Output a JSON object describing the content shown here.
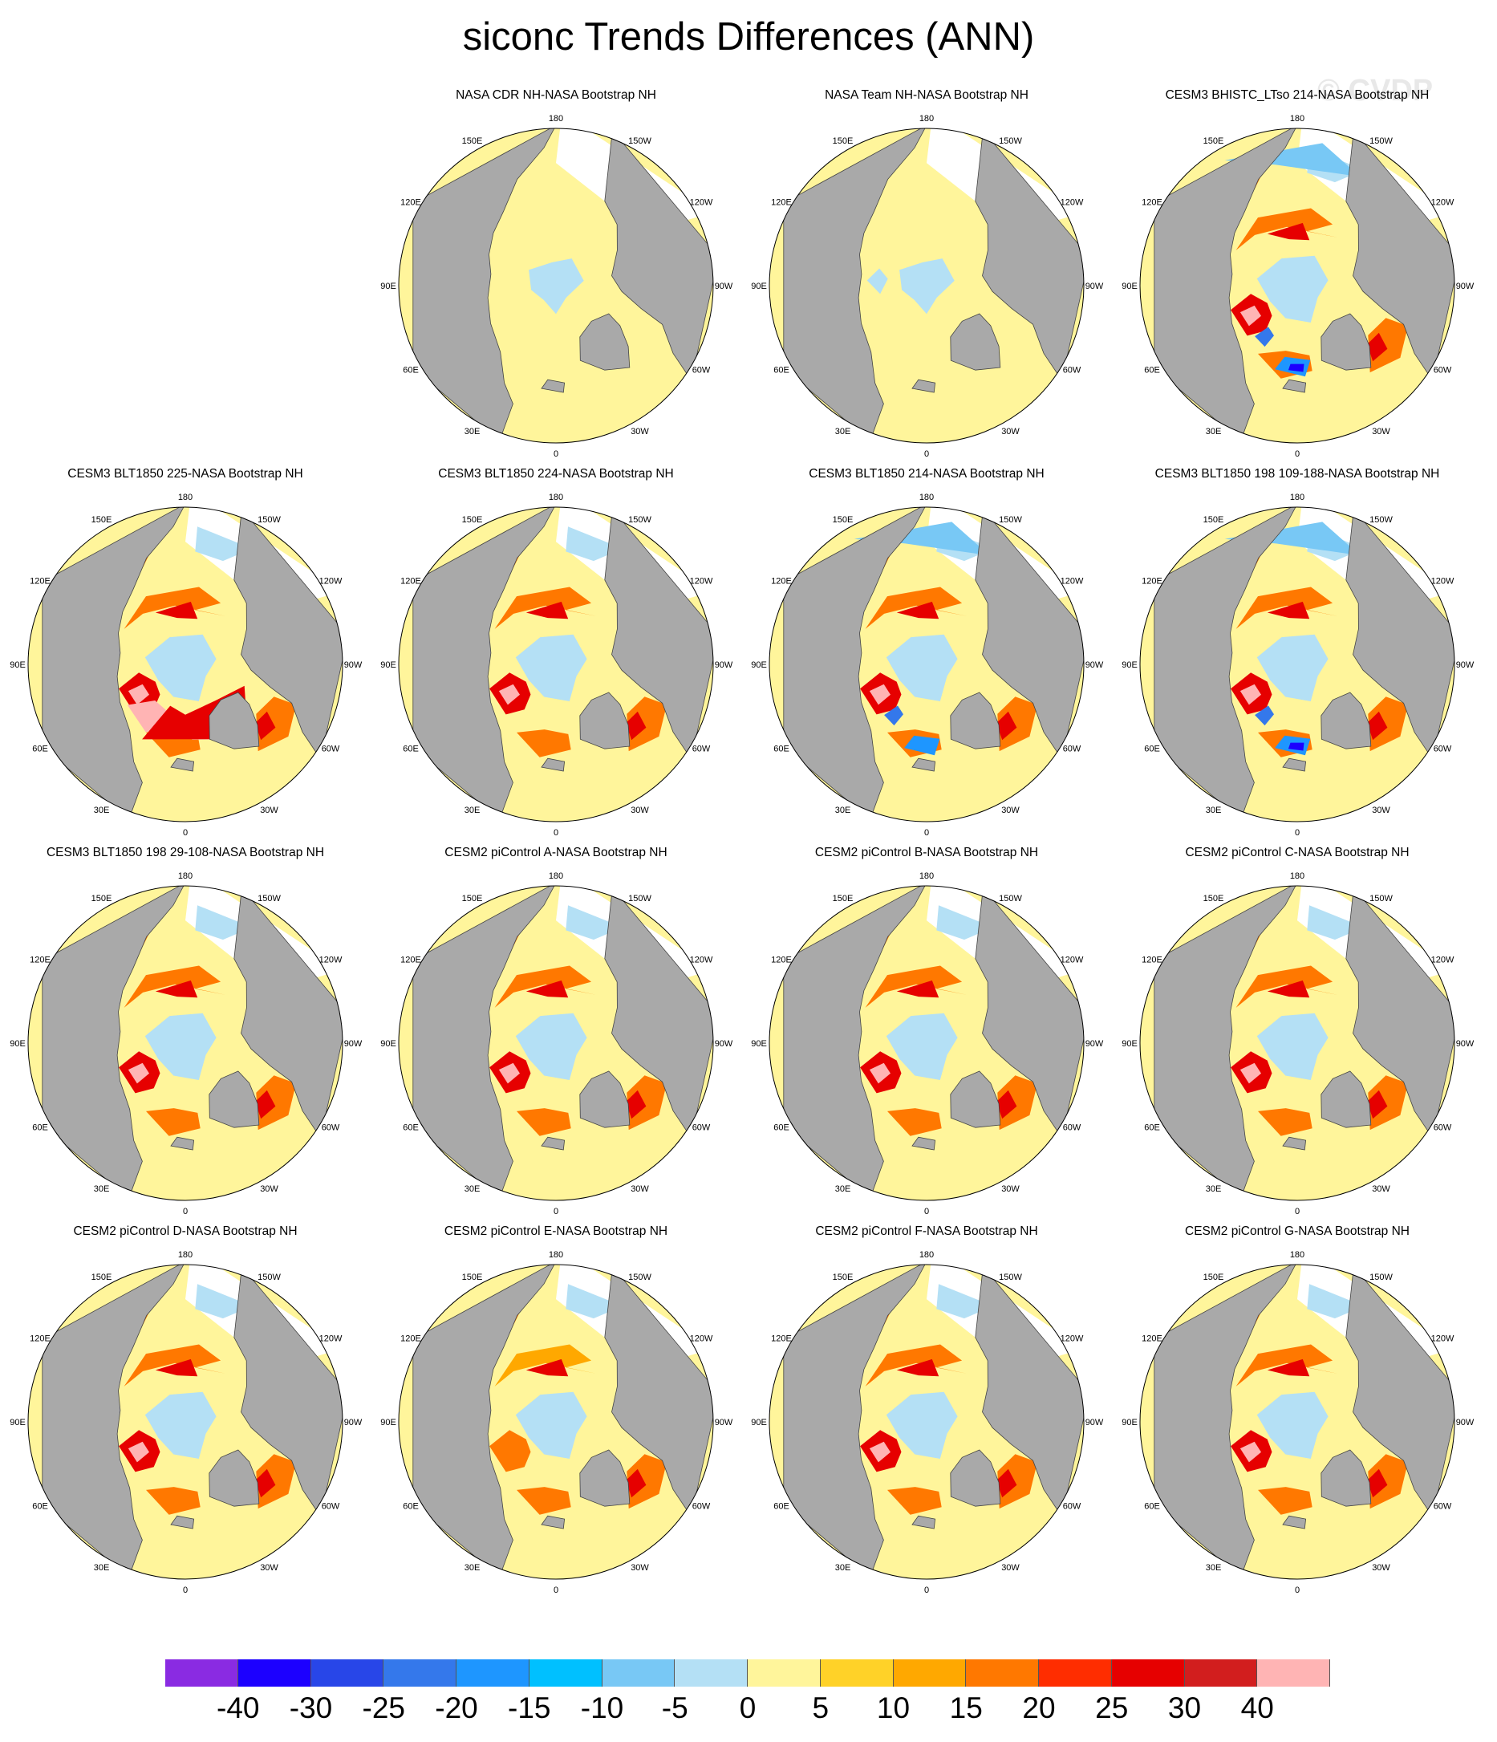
{
  "title": "siconc Trends Differences (ANN)",
  "watermark": "© CVDP",
  "chart_data": {
    "type": "heatmap",
    "title": "siconc Trends Differences (ANN)",
    "projection": "north polar stereographic",
    "longitude_labels": [
      "180",
      "150E",
      "120E",
      "90E",
      "60E",
      "30E",
      "0",
      "30W",
      "60W",
      "90W",
      "120W",
      "150W"
    ],
    "colorbar": {
      "levels": [
        "-40",
        "-30",
        "-25",
        "-20",
        "-15",
        "-10",
        "-5",
        "0",
        "5",
        "10",
        "15",
        "20",
        "25",
        "30",
        "40"
      ],
      "colors": [
        "#8a2be2",
        "#1c00ff",
        "#2846e8",
        "#3478eb",
        "#1e96ff",
        "#00c0ff",
        "#78c8f5",
        "#b4e0f5",
        "#fff59b",
        "#ffd228",
        "#ffa800",
        "#ff7800",
        "#ff2d00",
        "#e60000",
        "#d21e1e",
        "#ffb4b4"
      ]
    },
    "panels": [
      {
        "title": "NASA CDR NH-NASA Bootstrap NH",
        "pattern": "obs1"
      },
      {
        "title": "NASA Team NH-NASA Bootstrap NH",
        "pattern": "obs2"
      },
      {
        "title": "CESM3 BHISTC_LTso 214-NASA Bootstrap NH",
        "pattern": "hist"
      },
      {
        "title": "CESM3 BLT1850 225-NASA Bootstrap NH",
        "pattern": "strong"
      },
      {
        "title": "CESM3 BLT1850 224-NASA Bootstrap NH",
        "pattern": "moderate"
      },
      {
        "title": "CESM3 BLT1850 214-NASA Bootstrap NH",
        "pattern": "mixed"
      },
      {
        "title": "CESM3 BLT1850 198 109-188-NASA Bootstrap NH",
        "pattern": "hist"
      },
      {
        "title": "CESM3 BLT1850 198 29-108-NASA Bootstrap NH",
        "pattern": "moderate"
      },
      {
        "title": "CESM2 piControl A-NASA Bootstrap NH",
        "pattern": "moderate"
      },
      {
        "title": "CESM2 piControl B-NASA Bootstrap NH",
        "pattern": "moderate"
      },
      {
        "title": "CESM2 piControl C-NASA Bootstrap NH",
        "pattern": "moderate"
      },
      {
        "title": "CESM2 piControl D-NASA Bootstrap NH",
        "pattern": "moderate"
      },
      {
        "title": "CESM2 piControl E-NASA Bootstrap NH",
        "pattern": "mild"
      },
      {
        "title": "CESM2 piControl F-NASA Bootstrap NH",
        "pattern": "moderate"
      },
      {
        "title": "CESM2 piControl G-NASA Bootstrap NH",
        "pattern": "moderate"
      }
    ]
  }
}
